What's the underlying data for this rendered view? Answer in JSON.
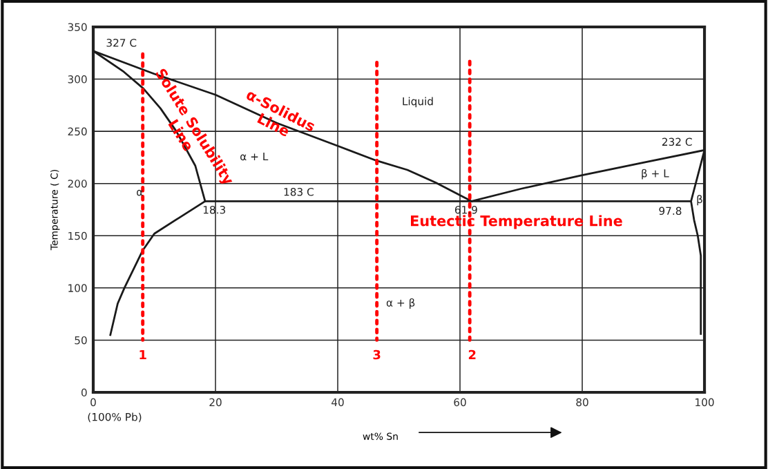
{
  "chart_data": {
    "type": "line",
    "xlabel": "wt% Sn",
    "ylabel": "Temperature ( C)",
    "xlim": [
      0,
      100
    ],
    "ylim": [
      0,
      350
    ],
    "xticks": [
      0,
      20,
      40,
      60,
      80,
      100
    ],
    "yticks": [
      0,
      50,
      100,
      150,
      200,
      250,
      300,
      350
    ],
    "grid": true,
    "marker": "none",
    "series": [
      {
        "color": "#1a1a1a",
        "line_style": "solid",
        "x": [
          0,
          10,
          20,
          30,
          40,
          46.3,
          51.4,
          56,
          61.9
        ],
        "values": [
          327,
          305,
          285,
          258,
          236,
          222,
          213,
          201,
          183
        ]
      },
      {
        "color": "#1a1a1a",
        "line_style": "solid",
        "x": [
          0,
          5,
          8.2,
          11,
          13.6,
          16.7,
          18.3
        ],
        "values": [
          327,
          307,
          291,
          272,
          250,
          217,
          183
        ]
      },
      {
        "color": "#1a1a1a",
        "line_style": "solid",
        "x": [
          18.3,
          14,
          10,
          8.1,
          5.1,
          4,
          2.8
        ],
        "values": [
          183,
          167,
          152,
          136,
          100,
          85,
          55
        ]
      },
      {
        "color": "#1a1a1a",
        "line_style": "solid",
        "x": [
          18.3,
          97.8
        ],
        "values": [
          183,
          183
        ]
      },
      {
        "color": "#1a1a1a",
        "line_style": "solid",
        "x": [
          61.9,
          70,
          80,
          90,
          100
        ],
        "values": [
          183,
          195,
          208,
          220,
          232
        ]
      },
      {
        "color": "#1a1a1a",
        "line_style": "solid",
        "x": [
          100,
          97.8,
          98.3,
          98.9,
          99.4,
          99.4,
          99.4
        ],
        "values": [
          232,
          183,
          165,
          150,
          131,
          100,
          56
        ]
      },
      {
        "color": "#ff0000",
        "line_style": "dotted",
        "x": [
          8.1,
          8.1
        ],
        "values": [
          324,
          50
        ]
      },
      {
        "color": "#ff0000",
        "line_style": "dotted",
        "x": [
          46.4,
          46.4
        ],
        "values": [
          316,
          50
        ]
      },
      {
        "color": "#ff0000",
        "line_style": "dotted",
        "x": [
          61.6,
          61.6
        ],
        "values": [
          317,
          50
        ]
      }
    ],
    "annotations": [
      "327 C",
      "232 C",
      "183 C",
      "18.3",
      "61.9",
      "97.8",
      "Liquid",
      "α + L",
      "β + L",
      "α",
      "β",
      "α + β",
      "α-Solidus\nLine",
      "Solute Solubility\nLine",
      "Eutectic Temperature Line",
      "1",
      "3",
      "2",
      "(100% Pb)"
    ]
  }
}
